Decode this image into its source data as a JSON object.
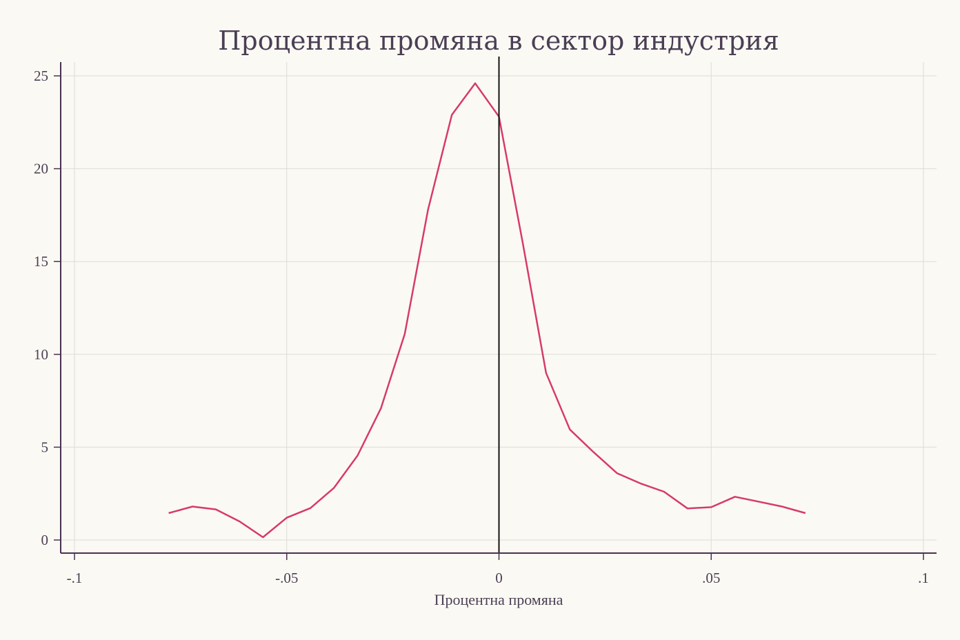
{
  "chart_data": {
    "type": "line",
    "title": "Процентна промяна в сектор индустрия",
    "xlabel": "Процентна промяна",
    "ylabel": "",
    "xlim": [
      -0.1,
      0.1
    ],
    "ylim": [
      0,
      25
    ],
    "xticks": [
      -0.1,
      -0.05,
      0,
      0.05,
      0.1
    ],
    "xtick_labels": [
      "-.1",
      "-.05",
      "0",
      ".05",
      ".1"
    ],
    "yticks": [
      0,
      5,
      10,
      15,
      20,
      25
    ],
    "ytick_labels": [
      "0",
      "5",
      "10",
      "15",
      "20",
      "25"
    ],
    "grid": true,
    "reference_line_x": 0,
    "series": [
      {
        "color": "#d63a6a",
        "x": [
          -0.0778,
          -0.0722,
          -0.0667,
          -0.0611,
          -0.0556,
          -0.05,
          -0.0444,
          -0.0389,
          -0.0333,
          -0.0278,
          -0.0222,
          -0.0167,
          -0.0111,
          -0.0056,
          0.0,
          0.0056,
          0.0111,
          0.0167,
          0.0222,
          0.0278,
          0.0333,
          0.0389,
          0.0444,
          0.05,
          0.0556,
          0.0611,
          0.0667,
          0.0722
        ],
        "y": [
          1.45,
          1.8,
          1.65,
          1.0,
          0.15,
          1.2,
          1.72,
          2.8,
          4.55,
          7.1,
          11.1,
          17.8,
          22.9,
          24.6,
          22.8,
          16.0,
          9.0,
          5.95,
          4.75,
          3.6,
          3.05,
          2.6,
          1.7,
          1.77,
          2.33,
          2.07,
          1.8,
          1.45
        ]
      }
    ]
  }
}
